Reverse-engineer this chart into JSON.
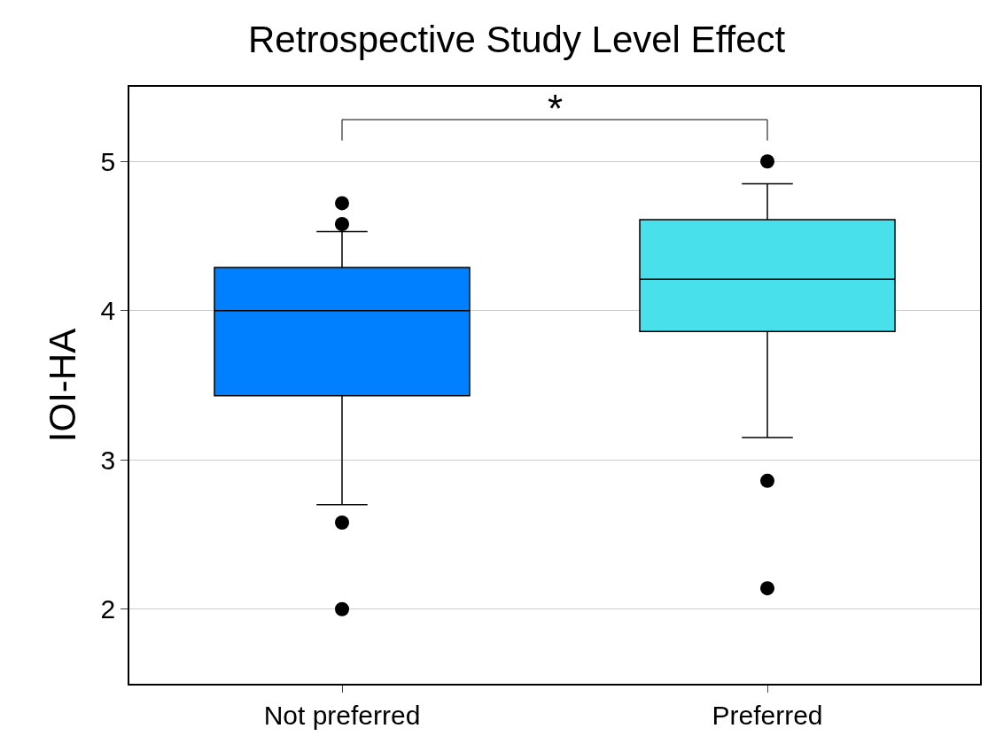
{
  "chart_data": {
    "type": "box",
    "title": "Retrospective Study Level Effect",
    "ylabel": "IOI-HA",
    "categories": [
      "Not preferred",
      "Preferred"
    ],
    "boxes": [
      {
        "low": 2.7,
        "q1": 3.43,
        "median": 4.0,
        "q3": 4.29,
        "high": 4.53,
        "outliers": [
          4.72,
          4.58,
          2.58,
          2.0
        ]
      },
      {
        "low": 3.15,
        "q1": 3.86,
        "median": 4.21,
        "q3": 4.61,
        "high": 4.85,
        "outliers": [
          5.0,
          2.86,
          2.14
        ]
      }
    ],
    "colors": [
      "#0080ff",
      "#47e0eb"
    ],
    "ylim": [
      1.5,
      5.5
    ],
    "yticks": [
      2,
      3,
      4,
      5
    ],
    "grid": "y",
    "annotations": [
      "*"
    ]
  }
}
